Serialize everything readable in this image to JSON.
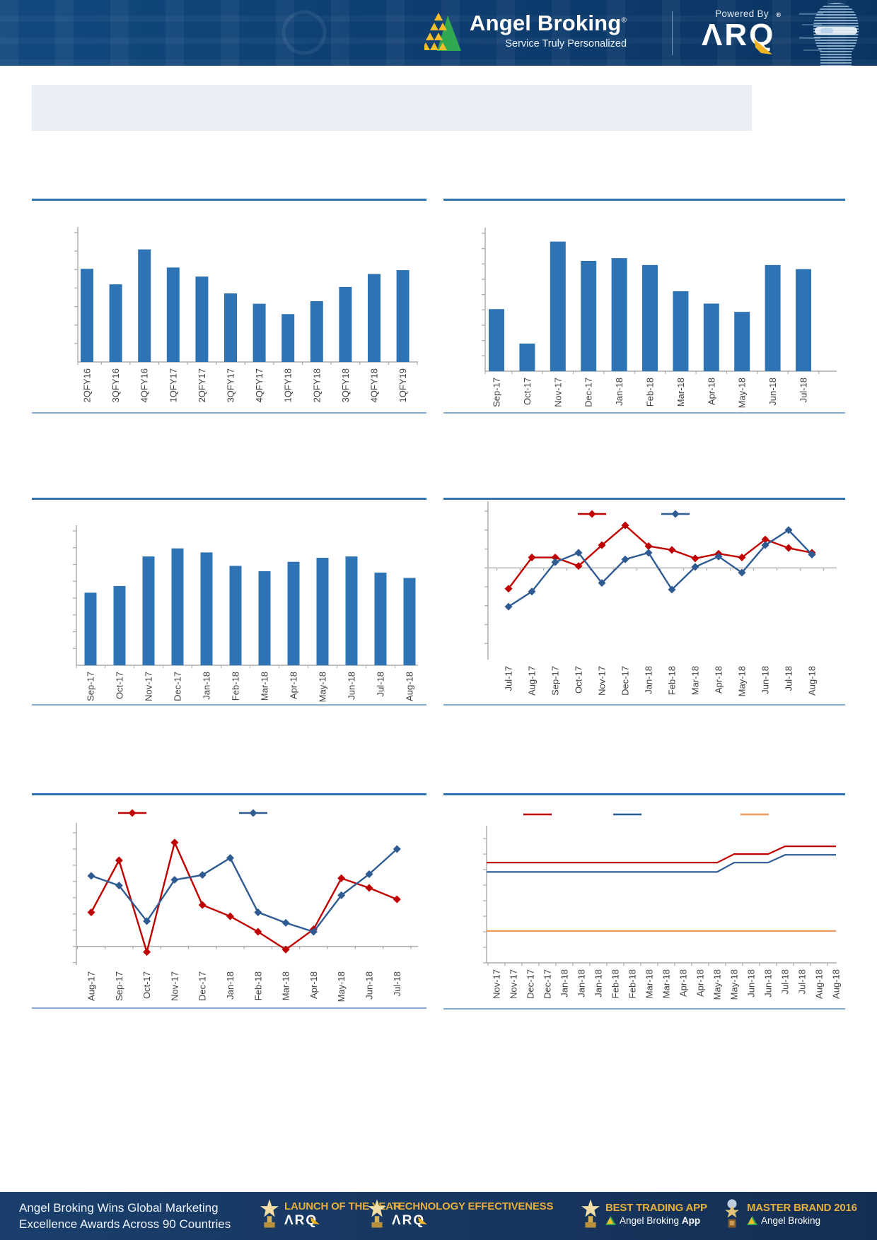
{
  "header": {
    "brand": "Angel Broking",
    "brand_reg": "®",
    "tagline": "Service Truly Personalized",
    "powered_by": "Powered By",
    "arq_logo": "ΛRQ",
    "arq_reg": "®"
  },
  "colors": {
    "bar": "#2E74B5",
    "series_red": "#C00000",
    "series_blue": "#2F5B93",
    "series_orange": "#ED9B60",
    "title_underline": "#2E74B5",
    "block_separator": "#85ABD2",
    "axis_gray": "#ADADAD",
    "banner_bg": "#E9EEF4",
    "header_bg": "#0D3C6F",
    "footer_bg": "#16375F",
    "award_gold": "#E7AE3B"
  },
  "chart_data": [
    {
      "id": "quarterly-bar",
      "type": "bar",
      "title": "",
      "categories": [
        "2QFY16",
        "3QFY16",
        "4QFY16",
        "1QFY17",
        "2QFY17",
        "3QFY17",
        "4QFY17",
        "1QFY18",
        "2QFY18",
        "3QFY18",
        "4QFY18",
        "1QFY19"
      ],
      "values": [
        72,
        60,
        87,
        73,
        66,
        53,
        45,
        37,
        47,
        58,
        68,
        71
      ],
      "ylim": [
        0,
        100
      ],
      "ylabel": "",
      "note": "y-axis ticks unlabeled in source; values are relative (% of plot height)"
    },
    {
      "id": "monthly-bar-sep17-jul18",
      "type": "bar",
      "title": "",
      "categories": [
        "Sep-17",
        "Oct-17",
        "Nov-17",
        "Dec-17",
        "Jan-18",
        "Feb-18",
        "Mar-18",
        "Apr-18",
        "May-18",
        "Jun-18",
        "Jul-18"
      ],
      "values": [
        45,
        20,
        94,
        80,
        82,
        77,
        58,
        49,
        43,
        77,
        74
      ],
      "ylim": [
        0,
        100
      ],
      "ylabel": "",
      "note": "y-axis ticks unlabeled in source; values are relative (% of plot height)"
    },
    {
      "id": "monthly-bar-sep17-aug18",
      "type": "bar",
      "title": "",
      "categories": [
        "Sep-17",
        "Oct-17",
        "Nov-17",
        "Dec-17",
        "Jan-18",
        "Feb-18",
        "Mar-18",
        "Apr-18",
        "May-18",
        "Jun-18",
        "Jul-18",
        "Aug-18"
      ],
      "values": [
        54,
        59,
        81,
        87,
        84,
        74,
        70,
        77,
        80,
        81,
        69,
        65
      ],
      "ylim": [
        0,
        100
      ],
      "ylabel": "",
      "note": "y-axis ticks unlabeled in source; values are relative (% of plot height)"
    },
    {
      "id": "two-series-line-jul17-aug18",
      "type": "line",
      "title": "",
      "categories": [
        "Jul-17",
        "Aug-17",
        "Sep-17",
        "Oct-17",
        "Nov-17",
        "Dec-17",
        "Jan-18",
        "Feb-18",
        "Mar-18",
        "Apr-18",
        "May-18",
        "Jun-18",
        "Jul-18",
        "Aug-18"
      ],
      "series": [
        {
          "name": "",
          "color": "#C00000",
          "values": [
            -1.1,
            0.55,
            0.55,
            0.1,
            1.2,
            2.25,
            1.15,
            0.95,
            0.5,
            0.75,
            0.55,
            1.5,
            1.05,
            0.8
          ]
        },
        {
          "name": "",
          "color": "#2F5B93",
          "values": [
            -2.05,
            -1.25,
            0.3,
            0.8,
            -0.8,
            0.45,
            0.8,
            -1.15,
            0.05,
            0.6,
            -0.25,
            1.2,
            2.0,
            0.7
          ]
        }
      ],
      "ylim": [
        -4.85,
        3.3
      ],
      "zero_line": true,
      "marker": "diamond",
      "legend_labels": [
        "",
        ""
      ],
      "note": "axis unlabeled in source; values in y-gridline units"
    },
    {
      "id": "two-series-line-aug17-jul18",
      "type": "line",
      "title": "",
      "categories": [
        "Aug-17",
        "Sep-17",
        "Oct-17",
        "Nov-17",
        "Dec-17",
        "Jan-18",
        "Feb-18",
        "Mar-18",
        "Apr-18",
        "May-18",
        "Jun-18",
        "Jul-18"
      ],
      "series": [
        {
          "name": "",
          "color": "#C00000",
          "values": [
            2.1,
            5.3,
            -0.35,
            6.4,
            2.55,
            1.85,
            0.9,
            -0.2,
            1.05,
            4.2,
            3.6,
            2.9
          ]
        },
        {
          "name": "",
          "color": "#2F5B93",
          "values": [
            4.35,
            3.75,
            1.55,
            4.1,
            4.4,
            5.45,
            2.1,
            1.45,
            0.9,
            3.15,
            4.45,
            6.0
          ]
        }
      ],
      "ylim": [
        -1.15,
        7.35
      ],
      "zero_line": true,
      "marker": "diamond",
      "legend_labels": [
        "",
        ""
      ],
      "note": "axis unlabeled in source; values in y-gridline units"
    },
    {
      "id": "three-series-step-line-nov17-aug18",
      "type": "line",
      "title": "",
      "categories": [
        "Nov-17",
        "Nov-17",
        "Dec-17",
        "Dec-17",
        "Jan-18",
        "Jan-18",
        "Jan-18",
        "Feb-18",
        "Feb-18",
        "Mar-18",
        "Mar-18",
        "Apr-18",
        "Apr-18",
        "May-18",
        "May-18",
        "Jun-18",
        "Jun-18",
        "Jul-18",
        "Jul-18",
        "Aug-18",
        "Aug-18"
      ],
      "series": [
        {
          "name": "",
          "color": "#C00000",
          "values": [
            6.45,
            6.45,
            6.45,
            6.45,
            6.45,
            6.45,
            6.45,
            6.45,
            6.45,
            6.45,
            6.45,
            6.45,
            6.45,
            6.45,
            7.0,
            7.0,
            7.0,
            7.5,
            7.5,
            7.5,
            7.5
          ]
        },
        {
          "name": "",
          "color": "#2F5B93",
          "values": [
            5.85,
            5.85,
            5.85,
            5.85,
            5.85,
            5.85,
            5.85,
            5.85,
            5.85,
            5.85,
            5.85,
            5.85,
            5.85,
            5.85,
            6.45,
            6.45,
            6.45,
            6.95,
            6.95,
            6.95,
            6.95
          ]
        },
        {
          "name": "",
          "color": "#ED9B60",
          "values": [
            2.05,
            2.05,
            2.05,
            2.05,
            2.05,
            2.05,
            2.05,
            2.05,
            2.05,
            2.05,
            2.05,
            2.05,
            2.05,
            2.05,
            2.05,
            2.05,
            2.05,
            2.05,
            2.05,
            2.05,
            2.05
          ]
        }
      ],
      "ylim": [
        0,
        8.55
      ],
      "zero_line": true,
      "marker": "none",
      "legend_labels": [
        "",
        "",
        ""
      ],
      "note": "axis unlabeled in source; values in y-gridline units"
    }
  ],
  "footer": {
    "headline_line1": "Angel Broking Wins Global Marketing",
    "headline_line2": "Excellence Awards Across 90 Countries",
    "awards": [
      {
        "title": "LAUNCH OF THE YEAR",
        "sub": "ΛRQ",
        "sub_reg": "™"
      },
      {
        "title": "TECHNOLOGY EFFECTIVENESS",
        "sub": "ΛRQ",
        "sub_reg": "™"
      },
      {
        "title": "BEST TRADING APP",
        "sub": "Angel Broking",
        "sub_bold": "App"
      },
      {
        "title": "MASTER BRAND 2016",
        "sub": "Angel Broking",
        "sub_bold": ""
      }
    ]
  }
}
